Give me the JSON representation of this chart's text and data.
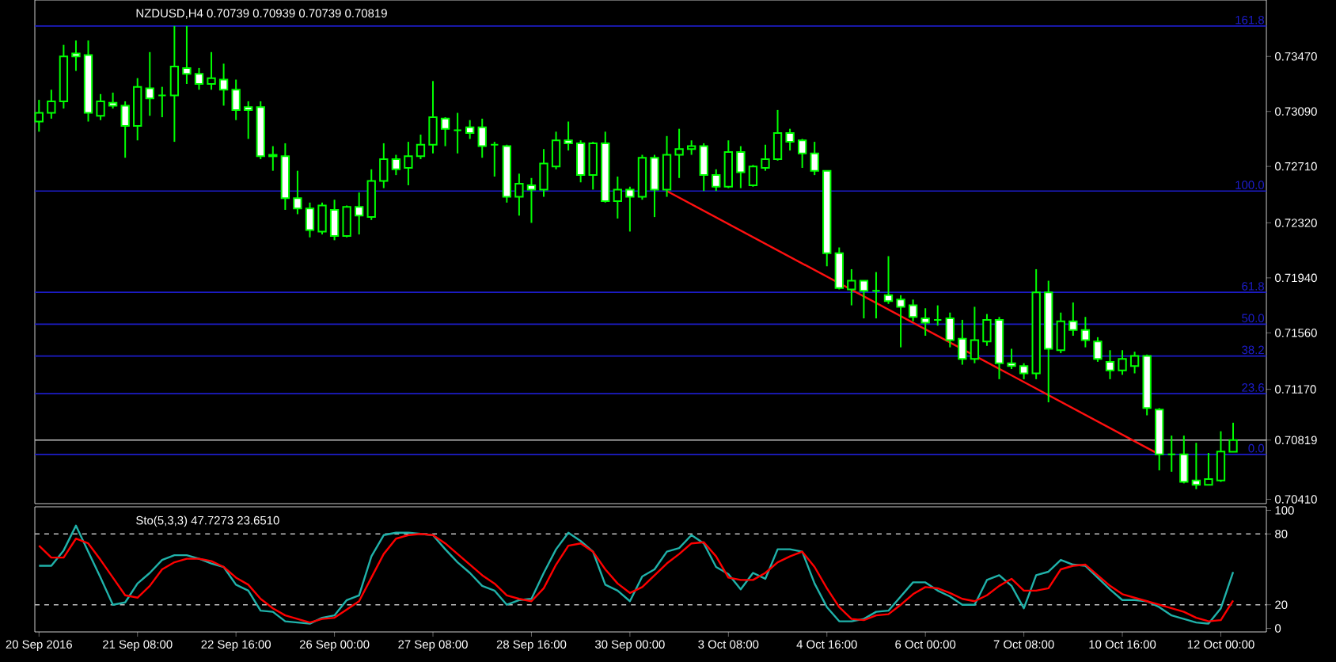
{
  "chart_data": [
    {
      "type": "candlestick",
      "title": "NZDUSD,H4  0.70739 0.70939 0.70739 0.70819",
      "categories": [
        null,
        null,
        null,
        null,
        null,
        null,
        null,
        null,
        null,
        null,
        null,
        null,
        null,
        null,
        null,
        null,
        null,
        null,
        null,
        null,
        null,
        null,
        null,
        null,
        null,
        null,
        null,
        null,
        null,
        null,
        null,
        null,
        null,
        null,
        null,
        null,
        null,
        null,
        null,
        null,
        null,
        null,
        null,
        null,
        null,
        null,
        null,
        null,
        null,
        null,
        null,
        null,
        null,
        null,
        null,
        null,
        null,
        null,
        null,
        null,
        null,
        null,
        null,
        null,
        null,
        null,
        null,
        null,
        null,
        null,
        null,
        null,
        null,
        null,
        null,
        null,
        null,
        null,
        null,
        null,
        null,
        null,
        null,
        null,
        null,
        null,
        null,
        null,
        null,
        null,
        null,
        null,
        null,
        null,
        null,
        null,
        null,
        null
      ],
      "ohlc": [
        [
          0.7302,
          0.7317,
          0.7295,
          0.7308
        ],
        [
          0.7308,
          0.7324,
          0.7304,
          0.7316
        ],
        [
          0.7316,
          0.7355,
          0.7311,
          0.7347
        ],
        [
          0.7349,
          0.7358,
          0.7337,
          0.7347
        ],
        [
          0.7348,
          0.7358,
          0.7302,
          0.7308
        ],
        [
          0.7306,
          0.7321,
          0.7303,
          0.7316
        ],
        [
          0.7315,
          0.7322,
          0.7311,
          0.7313
        ],
        [
          0.7313,
          0.7316,
          0.7277,
          0.7299
        ],
        [
          0.7299,
          0.7332,
          0.7289,
          0.7326
        ],
        [
          0.7325,
          0.735,
          0.7306,
          0.7318
        ],
        [
          0.732,
          0.7326,
          0.7305,
          0.732
        ],
        [
          0.732,
          0.7368,
          0.7288,
          0.734
        ],
        [
          0.7339,
          0.7368,
          0.7328,
          0.7335
        ],
        [
          0.7335,
          0.7339,
          0.7324,
          0.7328
        ],
        [
          0.7328,
          0.735,
          0.7324,
          0.7332
        ],
        [
          0.7331,
          0.7342,
          0.7313,
          0.7324
        ],
        [
          0.7324,
          0.7331,
          0.7303,
          0.731
        ],
        [
          0.7312,
          0.7316,
          0.729,
          0.731
        ],
        [
          0.7312,
          0.7316,
          0.7276,
          0.7278
        ],
        [
          0.7279,
          0.7285,
          0.7268,
          0.7278
        ],
        [
          0.7278,
          0.7287,
          0.7241,
          0.7249
        ],
        [
          0.7249,
          0.7268,
          0.7238,
          0.7242
        ],
        [
          0.7242,
          0.7246,
          0.7222,
          0.7227
        ],
        [
          0.7226,
          0.7246,
          0.7224,
          0.7244
        ],
        [
          0.7241,
          0.7248,
          0.722,
          0.7223
        ],
        [
          0.7223,
          0.7244,
          0.7222,
          0.7243
        ],
        [
          0.7243,
          0.7253,
          0.7224,
          0.7237
        ],
        [
          0.7236,
          0.7269,
          0.7234,
          0.7261
        ],
        [
          0.7261,
          0.7287,
          0.7256,
          0.7276
        ],
        [
          0.7276,
          0.7279,
          0.7265,
          0.7269
        ],
        [
          0.727,
          0.7288,
          0.7258,
          0.7278
        ],
        [
          0.7278,
          0.7293,
          0.7276,
          0.7286
        ],
        [
          0.7286,
          0.733,
          0.728,
          0.7305
        ],
        [
          0.7304,
          0.7305,
          0.7285,
          0.7297
        ],
        [
          0.7296,
          0.7308,
          0.728,
          0.7296
        ],
        [
          0.7298,
          0.7303,
          0.729,
          0.7294
        ],
        [
          0.7298,
          0.7304,
          0.7277,
          0.7285
        ],
        [
          0.7286,
          0.7288,
          0.7264,
          0.7286
        ],
        [
          0.7285,
          0.7286,
          0.7246,
          0.725
        ],
        [
          0.725,
          0.7266,
          0.7237,
          0.7259
        ],
        [
          0.7258,
          0.7263,
          0.7232,
          0.7255
        ],
        [
          0.7255,
          0.7283,
          0.725,
          0.7273
        ],
        [
          0.7271,
          0.7295,
          0.7269,
          0.7289
        ],
        [
          0.7289,
          0.7302,
          0.7282,
          0.7287
        ],
        [
          0.7287,
          0.7289,
          0.726,
          0.7265
        ],
        [
          0.7265,
          0.7288,
          0.7255,
          0.7287
        ],
        [
          0.7287,
          0.7295,
          0.7246,
          0.7247
        ],
        [
          0.7247,
          0.7264,
          0.7235,
          0.7255
        ],
        [
          0.7255,
          0.7257,
          0.7226,
          0.725
        ],
        [
          0.725,
          0.7279,
          0.7248,
          0.7277
        ],
        [
          0.7277,
          0.7279,
          0.7236,
          0.7255
        ],
        [
          0.7255,
          0.7292,
          0.725,
          0.7279
        ],
        [
          0.7279,
          0.7297,
          0.7263,
          0.7283
        ],
        [
          0.7283,
          0.7289,
          0.7279,
          0.7285
        ],
        [
          0.7285,
          0.7287,
          0.7254,
          0.7265
        ],
        [
          0.7265,
          0.7269,
          0.7254,
          0.7257
        ],
        [
          0.7257,
          0.7289,
          0.7256,
          0.7281
        ],
        [
          0.7281,
          0.7285,
          0.7256,
          0.7267
        ],
        [
          0.7258,
          0.7272,
          0.7257,
          0.7271
        ],
        [
          0.727,
          0.7286,
          0.7268,
          0.7276
        ],
        [
          0.7276,
          0.731,
          0.7275,
          0.7294
        ],
        [
          0.7294,
          0.7297,
          0.7282,
          0.7288
        ],
        [
          0.7289,
          0.729,
          0.727,
          0.728
        ],
        [
          0.728,
          0.7288,
          0.7265,
          0.7268
        ],
        [
          0.7268,
          0.7268,
          0.7202,
          0.7211
        ],
        [
          0.7211,
          0.7215,
          0.7186,
          0.7187
        ],
        [
          0.7186,
          0.72,
          0.7175,
          0.7192
        ],
        [
          0.7192,
          0.7192,
          0.7166,
          0.7185
        ],
        [
          0.7185,
          0.7198,
          0.7166,
          0.7185
        ],
        [
          0.7182,
          0.7209,
          0.7176,
          0.7178
        ],
        [
          0.7179,
          0.7182,
          0.7146,
          0.7174
        ],
        [
          0.7175,
          0.7179,
          0.7164,
          0.7167
        ],
        [
          0.7166,
          0.7173,
          0.7154,
          0.7163
        ],
        [
          0.7165,
          0.7175,
          0.7161,
          0.7165
        ],
        [
          0.7166,
          0.717,
          0.7146,
          0.7151
        ],
        [
          0.7152,
          0.7165,
          0.7134,
          0.7138
        ],
        [
          0.7138,
          0.7174,
          0.7135,
          0.7151
        ],
        [
          0.715,
          0.7169,
          0.7147,
          0.7165
        ],
        [
          0.7165,
          0.7167,
          0.7124,
          0.7135
        ],
        [
          0.7135,
          0.7145,
          0.7131,
          0.7133
        ],
        [
          0.7133,
          0.7135,
          0.7124,
          0.7128
        ],
        [
          0.7128,
          0.72,
          0.7124,
          0.7184
        ],
        [
          0.7184,
          0.7192,
          0.7108,
          0.7145
        ],
        [
          0.7144,
          0.717,
          0.7142,
          0.7164
        ],
        [
          0.7164,
          0.7177,
          0.7154,
          0.7158
        ],
        [
          0.7158,
          0.7167,
          0.7146,
          0.7151
        ],
        [
          0.715,
          0.7153,
          0.7136,
          0.7138
        ],
        [
          0.7136,
          0.7144,
          0.7124,
          0.713
        ],
        [
          0.713,
          0.7144,
          0.7127,
          0.7138
        ],
        [
          0.7133,
          0.7143,
          0.7128,
          0.714
        ],
        [
          0.714,
          0.7141,
          0.7099,
          0.7104
        ],
        [
          0.7103,
          0.7104,
          0.7061,
          0.7072
        ],
        [
          0.7072,
          0.7085,
          0.706,
          0.7072
        ],
        [
          0.7072,
          0.7085,
          0.7052,
          0.7053
        ],
        [
          0.7054,
          0.708,
          0.7048,
          0.7051
        ],
        [
          0.7051,
          0.7073,
          0.7051,
          0.7055
        ],
        [
          0.7054,
          0.7088,
          0.7053,
          0.7074
        ],
        [
          0.70739,
          0.70939,
          0.70739,
          0.70819
        ]
      ],
      "color": "#00ff00",
      "series": [
        {
          "type": "line",
          "color": "#ff1010",
          "values": [
            null,
            null,
            null,
            null,
            null,
            null,
            null,
            null,
            null,
            null,
            null,
            null,
            null,
            null,
            null,
            null,
            null,
            null,
            null,
            null,
            null,
            null,
            null,
            null,
            null,
            null,
            null,
            null,
            null,
            null,
            null,
            null,
            null,
            null,
            null,
            null,
            null,
            null,
            null,
            null,
            null,
            null,
            null,
            null,
            null,
            null,
            null,
            null,
            null,
            null,
            null,
            0.7254,
            null,
            null,
            null,
            null,
            null,
            null,
            null,
            null,
            null,
            null,
            null,
            null,
            null,
            null,
            null,
            null,
            null,
            null,
            null,
            null,
            null,
            null,
            null,
            null,
            null,
            null,
            null,
            null,
            null,
            null,
            null,
            null,
            null,
            null,
            null,
            null,
            null,
            null,
            null,
            0.7072,
            null,
            null,
            null,
            null,
            null,
            null
          ]
        }
      ],
      "ylim": [
        0.7038,
        0.7386
      ],
      "yticks": [
        {
          "value": 0.7041,
          "label": "0.70410"
        },
        0.70819,
        {
          "value": 0.7117,
          "label": "0.71170"
        },
        {
          "value": 0.7156,
          "label": "0.71560"
        },
        {
          "value": 0.7194,
          "label": "0.71940"
        },
        {
          "value": 0.7232,
          "label": "0.72320"
        },
        {
          "value": 0.7271,
          "label": "0.72710"
        },
        {
          "value": 0.7309,
          "label": "0.73090"
        },
        {
          "value": 0.7347,
          "label": "0.73470"
        }
      ],
      "tick_labels": "y",
      "ref_lines": [
        {
          "axis": "y",
          "value": 0.7368,
          "color": "#1c1cc8"
        },
        {
          "axis": "y",
          "value": 0.7254,
          "color": "#1c1cc8"
        },
        {
          "axis": "y",
          "value": 0.7184,
          "color": "#1c1cc8"
        },
        {
          "axis": "y",
          "value": 0.7162,
          "color": "#1c1cc8"
        },
        {
          "axis": "y",
          "value": 0.714,
          "color": "#1c1cc8"
        },
        {
          "axis": "y",
          "value": 0.7114,
          "color": "#1c1cc8"
        },
        {
          "axis": "y",
          "value": 0.7072,
          "color": "#1c1cc8"
        },
        {
          "axis": "y",
          "value": 0.70819,
          "color": "#c0c0c0"
        }
      ],
      "annotations": [
        {
          "text": "161.8",
          "y": 0.7368
        },
        {
          "text": "100.0",
          "y": 0.7254
        },
        {
          "text": "61.8",
          "y": 0.7184
        },
        {
          "text": "50.0",
          "y": 0.7162
        },
        {
          "text": "38.2",
          "y": 0.714
        },
        {
          "text": "23.6",
          "y": 0.7114
        },
        {
          "text": "0.0",
          "y": 0.7072
        }
      ]
    },
    {
      "type": "line",
      "title": "Sto(5,3,3) 47.7273 23.6510",
      "categories": [
        "20 Sep 2016",
        null,
        null,
        null,
        null,
        null,
        null,
        null,
        "21 Sep 08:00",
        null,
        null,
        null,
        null,
        null,
        null,
        null,
        "22 Sep 16:00",
        null,
        null,
        null,
        null,
        null,
        null,
        null,
        "26 Sep 00:00",
        null,
        null,
        null,
        null,
        null,
        null,
        null,
        "27 Sep 08:00",
        null,
        null,
        null,
        null,
        null,
        null,
        null,
        "28 Sep 16:00",
        null,
        null,
        null,
        null,
        null,
        null,
        null,
        "30 Sep 00:00",
        null,
        null,
        null,
        null,
        null,
        null,
        null,
        "3 Oct 08:00",
        null,
        null,
        null,
        null,
        null,
        null,
        null,
        "4 Oct 16:00",
        null,
        null,
        null,
        null,
        null,
        null,
        null,
        "6 Oct 00:00",
        null,
        null,
        null,
        null,
        null,
        null,
        null,
        "7 Oct 08:00",
        null,
        null,
        null,
        null,
        null,
        null,
        null,
        "10 Oct 16:00",
        null,
        null,
        null,
        null,
        null,
        null,
        null,
        "12 Oct 00:00",
        null
      ],
      "series": [
        {
          "color": "#20b2aa",
          "values": [
            53,
            53,
            66,
            87,
            65,
            43,
            20,
            22,
            38,
            47,
            58,
            62,
            62,
            59,
            55,
            52,
            37,
            32,
            15,
            14,
            6,
            5,
            4,
            9,
            11,
            24,
            28,
            61,
            79,
            81,
            81,
            80,
            79,
            67,
            56,
            47,
            36,
            32,
            20,
            24,
            25,
            47,
            67,
            81,
            74,
            65,
            37,
            32,
            23,
            44,
            50,
            65,
            68,
            79,
            72,
            52,
            46,
            33,
            47,
            42,
            67,
            67,
            65,
            38,
            18,
            6,
            6,
            8,
            14,
            15,
            27,
            39,
            39,
            32,
            27,
            20,
            20,
            41,
            45,
            36,
            17,
            45,
            48,
            58,
            54,
            53,
            43,
            33,
            24,
            24,
            23,
            18,
            11,
            8,
            5,
            4,
            17,
            47.7273
          ]
        },
        {
          "color": "#ff0000",
          "values": [
            70,
            60,
            60,
            76,
            72,
            58,
            43,
            28,
            26,
            36,
            50,
            56,
            59,
            59,
            57,
            52,
            43,
            37,
            25,
            17,
            11,
            8,
            5,
            8,
            9,
            16,
            23,
            43,
            63,
            76,
            79,
            80,
            79,
            72,
            63,
            54,
            45,
            38,
            28,
            25,
            23,
            34,
            54,
            70,
            72,
            65,
            50,
            38,
            30,
            35,
            45,
            55,
            63,
            72,
            73,
            61,
            43,
            41,
            41,
            47,
            56,
            61,
            65,
            52,
            34,
            18,
            8,
            7,
            11,
            12,
            20,
            29,
            35,
            34,
            30,
            25,
            23,
            28,
            36,
            42,
            32,
            32,
            34,
            50,
            53,
            54,
            45,
            36,
            29,
            26,
            23,
            20,
            17,
            14,
            9,
            6,
            7,
            23.651
          ]
        }
      ],
      "ylim": [
        -3,
        103
      ],
      "yticks": [
        100,
        80,
        20,
        0
      ],
      "ref_lines": [
        {
          "axis": "y",
          "value": 80,
          "color": "#c0c0c0",
          "line_style": "dashed"
        },
        {
          "axis": "y",
          "value": 20,
          "color": "#c0c0c0",
          "line_style": "dashed"
        }
      ]
    }
  ]
}
